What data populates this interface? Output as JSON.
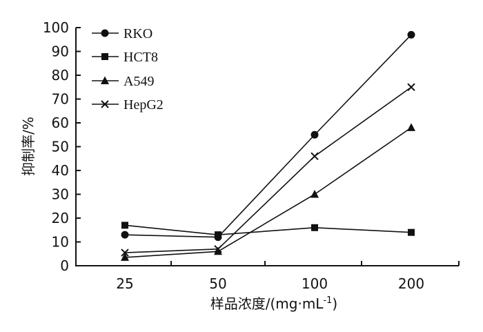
{
  "chart_data": {
    "type": "line",
    "categories": [
      "25",
      "50",
      "100",
      "200"
    ],
    "series": [
      {
        "name": "RKO",
        "marker": "circle",
        "values": [
          13,
          12,
          55,
          97
        ]
      },
      {
        "name": "HCT8",
        "marker": "square",
        "values": [
          17,
          13,
          16,
          14
        ]
      },
      {
        "name": "A549",
        "marker": "triangle",
        "values": [
          3.5,
          6,
          30,
          58
        ]
      },
      {
        "name": "HepG2",
        "marker": "x",
        "values": [
          5.5,
          7,
          46,
          75
        ]
      }
    ],
    "title": "",
    "xlabel": "样品浓度/(mg·mL",
    "xlabel_sup": "-1",
    "xlabel_suffix": ")",
    "ylabel": "抑制率/%",
    "ylim": [
      0,
      100
    ],
    "yticks": [
      0,
      10,
      20,
      30,
      40,
      50,
      60,
      70,
      80,
      90,
      100
    ],
    "grid": false,
    "legend_position": "top-left",
    "line_color": "#111111"
  }
}
